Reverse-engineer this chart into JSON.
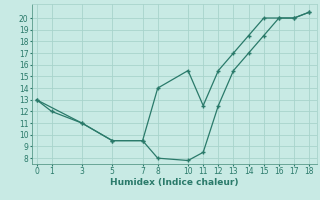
{
  "xlabel": "Humidex (Indice chaleur)",
  "bg_color": "#c8eae4",
  "grid_color": "#a8d4cc",
  "line_color": "#2a7a6a",
  "line1_x": [
    0,
    1,
    3,
    5,
    7,
    8,
    10,
    11,
    12,
    13,
    14,
    15,
    16,
    17,
    18
  ],
  "line1_y": [
    13,
    12,
    11,
    9.5,
    9.5,
    8,
    7.8,
    8.5,
    12.5,
    15.5,
    17,
    18.5,
    20,
    20,
    20.5
  ],
  "line2_x": [
    0,
    3,
    5,
    7,
    8,
    10,
    11,
    12,
    13,
    14,
    15,
    16,
    17,
    18
  ],
  "line2_y": [
    13,
    11,
    9.5,
    9.5,
    14,
    15.5,
    12.5,
    15.5,
    17,
    18.5,
    20,
    20,
    20,
    20.5
  ],
  "xlim": [
    -0.3,
    18.5
  ],
  "ylim": [
    7.5,
    21.2
  ],
  "xticks": [
    0,
    1,
    3,
    5,
    7,
    8,
    10,
    11,
    12,
    13,
    14,
    15,
    16,
    17,
    18
  ],
  "yticks": [
    8,
    9,
    10,
    11,
    12,
    13,
    14,
    15,
    16,
    17,
    18,
    19,
    20
  ],
  "label_fontsize": 6.5,
  "tick_fontsize": 5.5
}
